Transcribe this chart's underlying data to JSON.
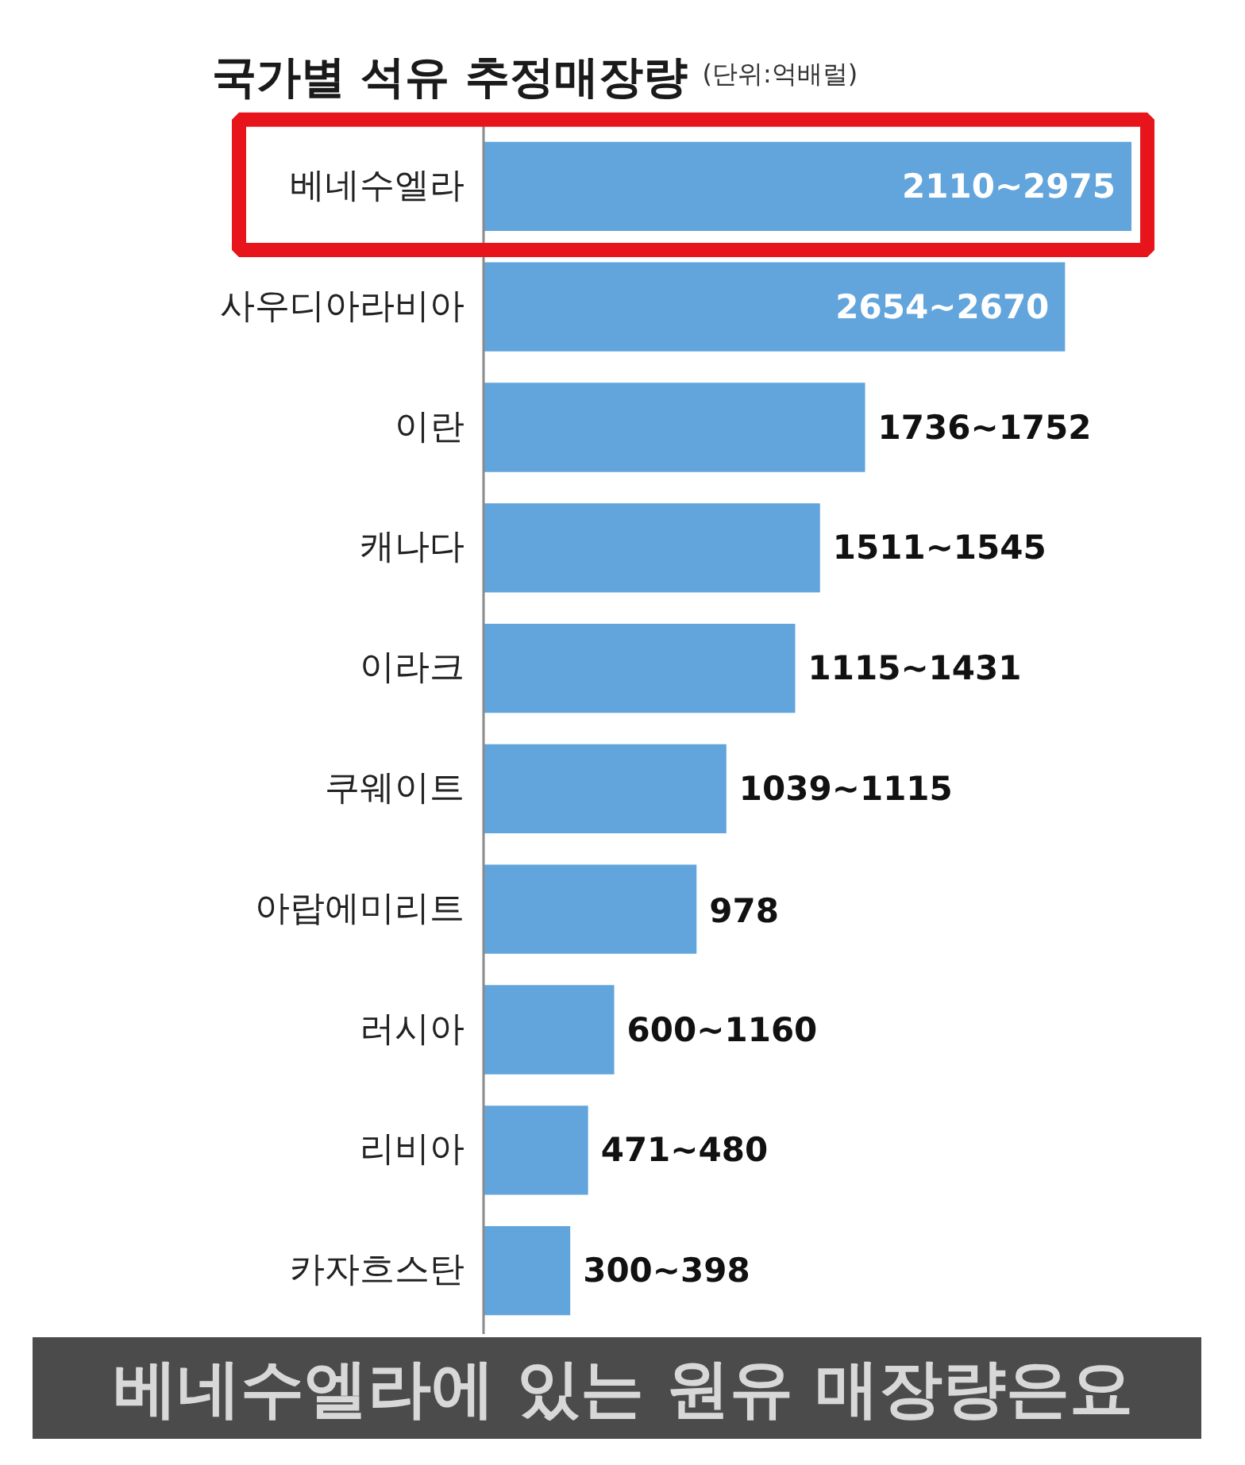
{
  "chart_data": {
    "type": "bar",
    "orientation": "horizontal",
    "tick_labels": "y",
    "title": "국가별 석유 추정매장량",
    "subtitle": "(단위:억배럴)",
    "categories": [
      "베네수엘라",
      "사우디아라비아",
      "이란",
      "캐나다",
      "이라크",
      "쿠웨이트",
      "아랍에미리트",
      "러시아",
      "리비아",
      "카자흐스탄"
    ],
    "values": [
      2975,
      2670,
      1752,
      1545,
      1431,
      1115,
      978,
      600,
      480,
      398
    ],
    "color": "#62a5dc",
    "value_labels": [
      "2110~2975",
      "2654~2670",
      "1736~1752",
      "1511~1545",
      "1115~1431",
      "1039~1115",
      "978",
      "600~1160",
      "471~480",
      "300~398"
    ],
    "annotations": [
      "베네수엘라에 있는 원유 매장량은요"
    ]
  }
}
